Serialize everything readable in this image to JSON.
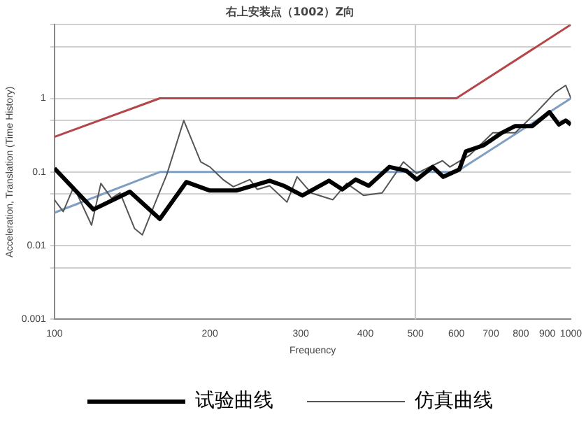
{
  "chart_data": {
    "type": "line",
    "title": "右上安装点（1002）Z向",
    "xlabel": "Frequency",
    "ylabel": "Acceleration, Translation (Time History)",
    "log": "xy",
    "xlim": [
      100,
      1000
    ],
    "xticks": [
      100,
      200,
      300,
      400,
      500,
      600,
      700,
      800,
      900,
      1000
    ],
    "ylim": [
      0.001,
      10
    ],
    "yticks": [
      0.001,
      {
        "value": 0.005,
        "label": null
      },
      0.01,
      {
        "value": 0.05,
        "label": null
      },
      0.1,
      {
        "value": 0.5,
        "label": null
      },
      1,
      {
        "value": 5,
        "label": null
      },
      {
        "value": 10,
        "label": null
      }
    ],
    "grid": "y",
    "legend": "bottom",
    "marker": "none",
    "ref_lines": [
      {
        "axis": "x",
        "value": 500,
        "color": "#c8c8c8"
      }
    ],
    "series": [
      {
        "color": "#b5474a",
        "x": [
          100,
          160,
          600,
          1000
        ],
        "values": [
          0.3,
          1,
          1,
          10
        ]
      },
      {
        "color": "#7f9fc2",
        "x": [
          100,
          160,
          600,
          1000
        ],
        "values": [
          0.028,
          0.1,
          0.1,
          1
        ]
      },
      {
        "name": "仿真曲线",
        "color": "#555555",
        "x": [
          100,
          104,
          109,
          118,
          123,
          129,
          134,
          143,
          148,
          158,
          165,
          178,
          192,
          200,
          212,
          222,
          239,
          247,
          261,
          282,
          295,
          314,
          346,
          368,
          397,
          431,
          474,
          503,
          564,
          583,
          637,
          706,
          780,
          858,
          932,
          977,
          1000
        ],
        "values": [
          0.042,
          0.029,
          0.063,
          0.019,
          0.07,
          0.044,
          0.052,
          0.017,
          0.014,
          0.044,
          0.092,
          0.5,
          0.137,
          0.117,
          0.079,
          0.063,
          0.079,
          0.058,
          0.065,
          0.039,
          0.086,
          0.052,
          0.042,
          0.07,
          0.048,
          0.052,
          0.137,
          0.096,
          0.142,
          0.117,
          0.17,
          0.34,
          0.34,
          0.65,
          1.2,
          1.5,
          1.0
        ]
      },
      {
        "name": "试验曲线",
        "color": "#000000",
        "x": [
          100,
          119,
          140,
          160,
          180,
          200,
          225,
          261,
          278,
          302,
          340,
          361,
          383,
          406,
          445,
          480,
          503,
          540,
          566,
          608,
          626,
          677,
          735,
          780,
          842,
          909,
          948,
          977,
          1000
        ],
        "values": [
          0.112,
          0.031,
          0.054,
          0.023,
          0.073,
          0.056,
          0.056,
          0.076,
          0.065,
          0.048,
          0.076,
          0.058,
          0.079,
          0.065,
          0.117,
          0.104,
          0.079,
          0.117,
          0.086,
          0.108,
          0.19,
          0.23,
          0.34,
          0.42,
          0.42,
          0.65,
          0.44,
          0.5,
          0.44
        ]
      }
    ]
  }
}
